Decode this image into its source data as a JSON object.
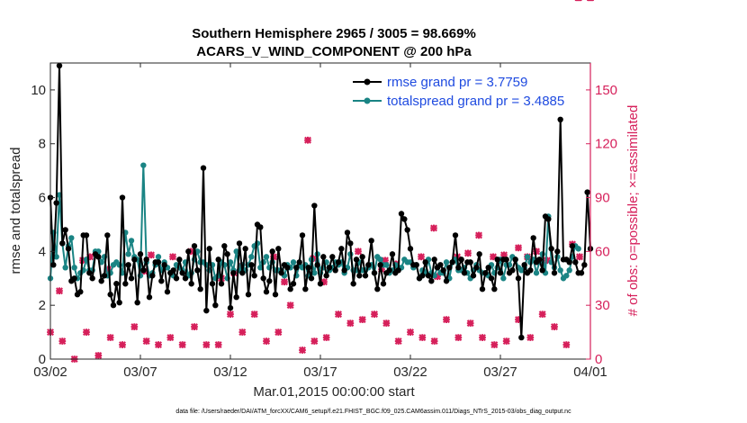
{
  "chart_data": {
    "type": "line",
    "title": "Southern Hemisphere 2965 / 3005 = 98.669%",
    "subtitle": "ACARS_V_WIND_COMPONENT @ 200 hPa",
    "xlabel": "Mar.01,2015 00:00:00 start",
    "ylabel": "rmse and totalspread",
    "ylabel_right": "# of obs: o=possible; ×=assimilated",
    "footer": "data file: /Users/raeder/DAI/ATM_forcXX/CAM6_setup/f.e21.FHIST_BGC.f09_025.CAM6assim.011/Diags_NTrS_2015-03/obs_diag_output.nc",
    "xlim": [
      0,
      30
    ],
    "ylim": [
      0,
      11
    ],
    "ylim_right": [
      0,
      165
    ],
    "x_tick_values": [
      1,
      6,
      11,
      16,
      21,
      26,
      31
    ],
    "x_tick_labels": [
      "03/02",
      "03/07",
      "03/12",
      "03/17",
      "03/22",
      "03/27",
      "04/01"
    ],
    "y_ticks": [
      0,
      2,
      4,
      6,
      8,
      10
    ],
    "y_ticks_right": [
      0,
      30,
      60,
      90,
      120,
      150
    ],
    "grid": false,
    "legend_position": "top-right",
    "colors": {
      "rmse": "#000000",
      "totalspread": "#1a8484",
      "obs": "#d6205b",
      "legend_text": "#1f4be0"
    },
    "series": [
      {
        "name": "rmse grand pr = 3.7759",
        "values": [
          6.0,
          3.5,
          5.8,
          10.9,
          4.3,
          4.8,
          4.1,
          2.9,
          3.0,
          2.4,
          2.5,
          4.6,
          4.6,
          3.2,
          3.0,
          3.9,
          3.8,
          2.9,
          3.1,
          4.6,
          2.4,
          2.0,
          2.8,
          2.1,
          6.0,
          2.8,
          3.5,
          3.0,
          3.7,
          2.1,
          3.9,
          3.3,
          3.7,
          2.3,
          3.1,
          3.6,
          3.6,
          2.9,
          3.5,
          2.5,
          3.2,
          3.3,
          3.0,
          3.7,
          3.2,
          3.0,
          4.0,
          2.8,
          4.2,
          3.3,
          2.6,
          7.1,
          1.8,
          4.1,
          2.8,
          2.0,
          3.7,
          2.8,
          4.2,
          3.9,
          1.9,
          3.2,
          2.3,
          4.3,
          3.2,
          4.1,
          2.4,
          3.5,
          3.1,
          5.0,
          4.9,
          3.0,
          2.5,
          2.9,
          4.0,
          2.4,
          4.1,
          3.2,
          3.5,
          3.4,
          2.6,
          2.8,
          3.4,
          3.6,
          4.6,
          2.6,
          3.4,
          3.0,
          5.7,
          3.5,
          2.8,
          3.8,
          3.1,
          3.4,
          3.8,
          3.3,
          3.6,
          4.1,
          3.3,
          4.7,
          4.3,
          2.8,
          3.7,
          3.1,
          3.8,
          3.1,
          3.5,
          4.4,
          3.2,
          2.6,
          3.5,
          2.8,
          3.2,
          3.3,
          3.9,
          3.2,
          3.3,
          5.4,
          5.2,
          4.8,
          4.1,
          3.5,
          3.5,
          3.0,
          3.1,
          3.6,
          3.1,
          2.9,
          3.7,
          3.4,
          3.5,
          3.3,
          2.9,
          3.4,
          3.6,
          4.6,
          3.4,
          3.7,
          3.2,
          3.6,
          3.6,
          3.1,
          3.4,
          3.9,
          2.6,
          3.2,
          3.4,
          3.0,
          2.6,
          3.7,
          3.2,
          3.7,
          3.7,
          3.2,
          3.3,
          3.7,
          3.0,
          0.8,
          3.5,
          3.2,
          3.3,
          4.5,
          3.6,
          3.7,
          3.3,
          5.3,
          5.2,
          4.1,
          3.2,
          4.0,
          8.9,
          3.7,
          3.7,
          3.6,
          4.2,
          3.6,
          3.2,
          3.2,
          3.5,
          6.2,
          4.1
        ]
      },
      {
        "name": "totalspread grand pr = 3.4885",
        "values": [
          3.0,
          4.7,
          3.8,
          6.1,
          4.3,
          3.4,
          4.2,
          4.5,
          3.4,
          3.0,
          3.2,
          3.3,
          3.7,
          3.3,
          3.3,
          4.0,
          4.0,
          3.6,
          3.8,
          3.1,
          3.2,
          3.5,
          3.6,
          3.5,
          3.2,
          4.7,
          3.9,
          4.4,
          3.8,
          3.7,
          3.1,
          7.2,
          3.6,
          3.1,
          3.2,
          3.5,
          3.8,
          3.3,
          3.6,
          3.4,
          3.2,
          3.1,
          3.5,
          3.4,
          3.3,
          3.6,
          3.1,
          3.2,
          3.7,
          4.0,
          3.6,
          3.6,
          3.5,
          3.3,
          3.5,
          3.0,
          3.1,
          3.6,
          3.5,
          3.0,
          3.6,
          3.3,
          4.0,
          3.3,
          3.5,
          3.3,
          3.5,
          3.8,
          4.2,
          4.3,
          3.4,
          3.6,
          3.8,
          3.4,
          3.6,
          3.3,
          3.3,
          3.3,
          3.1,
          3.5,
          3.4,
          3.6,
          3.1,
          3.5,
          3.4,
          3.5,
          3.1,
          3.7,
          3.2,
          3.9,
          3.2,
          3.4,
          3.6,
          3.3,
          3.4,
          3.6,
          3.5,
          3.6,
          3.2,
          3.4,
          3.9,
          3.3,
          3.3,
          3.6,
          3.3,
          3.3,
          3.4,
          3.5,
          3.2,
          3.8,
          3.7,
          3.5,
          3.5,
          3.2,
          3.3,
          3.5,
          3.4,
          3.4,
          3.7,
          3.6,
          3.6,
          3.4,
          3.5,
          3.0,
          3.3,
          3.2,
          3.7,
          3.2,
          3.1,
          3.4,
          3.2,
          3.2,
          3.6,
          3.0,
          3.6,
          3.7,
          3.3,
          3.3,
          3.4,
          3.2,
          3.0,
          3.3,
          3.5,
          3.3,
          3.2,
          3.2,
          3.1,
          3.5,
          3.2,
          3.4,
          3.7,
          3.0,
          3.5,
          3.5,
          3.8,
          3.7,
          3.4,
          3.3,
          3.4,
          3.8,
          3.6,
          3.7,
          3.2,
          3.6,
          3.9,
          3.2,
          5.3,
          3.6,
          3.4,
          3.8,
          3.3,
          3.0,
          3.1,
          3.3,
          3.8,
          4.2,
          4.1
        ]
      },
      {
        "name": "obs possible",
        "axis": "right",
        "marker": "o",
        "values": [
          15,
          5,
          20,
          25,
          10,
          0,
          20,
          25,
          0,
          6,
          8,
          22,
          15,
          12,
          23,
          8,
          2,
          22,
          0,
          30,
          12,
          10,
          22,
          25,
          8,
          5,
          20,
          8,
          18,
          12,
          5,
          26,
          10,
          8,
          15,
          25,
          8,
          0,
          18,
          10,
          12,
          25,
          18,
          5,
          8,
          25,
          12,
          10,
          18,
          22,
          25,
          14,
          8,
          12,
          20,
          25,
          8,
          22,
          10,
          15,
          25,
          12,
          8,
          20,
          15,
          30,
          0,
          8,
          25,
          12,
          18,
          12,
          10,
          28,
          8,
          5,
          15,
          20,
          8,
          18,
          30,
          25,
          18,
          20,
          5,
          12,
          22,
          20,
          10,
          15,
          22,
          5,
          12,
          20,
          8,
          10,
          25,
          18,
          8,
          5,
          20,
          15,
          12,
          20,
          22,
          8,
          10,
          15,
          25,
          18,
          10,
          5,
          20,
          12,
          8,
          18,
          10,
          12,
          22,
          20,
          15,
          8,
          10,
          25,
          12,
          18,
          15,
          20,
          10,
          8,
          12,
          20,
          22,
          8,
          18,
          10,
          12,
          25,
          5,
          8,
          20,
          15,
          8,
          10,
          12,
          18,
          25,
          22,
          8,
          15,
          12,
          20,
          10,
          8,
          12,
          18,
          22,
          20,
          10,
          15,
          12,
          8,
          18,
          20,
          25,
          15,
          10,
          12,
          18,
          5,
          20,
          15,
          8
        ]
      },
      {
        "name": "obs assimilated",
        "axis": "right",
        "marker": "x",
        "values": [
          15,
          5,
          40,
          25,
          10,
          0,
          22,
          25,
          0,
          6,
          8,
          22,
          15,
          12,
          23,
          8,
          2,
          22,
          0,
          49,
          12,
          10,
          22,
          25,
          8,
          5,
          20,
          8,
          18,
          12,
          5,
          26,
          10,
          8,
          15,
          25,
          8,
          0,
          18,
          10,
          12,
          25,
          18,
          5,
          8,
          25,
          12,
          10,
          18,
          22,
          25,
          14,
          8,
          12,
          20,
          25,
          8,
          22,
          10,
          15,
          25,
          12,
          8,
          20,
          15,
          57,
          0,
          8,
          25,
          12,
          18,
          12,
          10,
          28,
          8,
          5,
          15,
          20,
          8,
          18,
          30,
          25,
          18,
          20,
          5,
          12,
          22,
          20,
          10,
          15,
          22,
          5,
          12,
          20,
          8,
          10,
          25,
          18,
          8,
          5,
          20,
          15,
          12,
          20,
          22,
          8,
          10,
          15,
          25,
          18,
          10,
          5,
          20,
          12,
          8,
          18,
          10,
          12,
          22,
          20,
          15,
          8,
          10,
          25,
          12,
          18,
          15,
          20,
          10,
          8,
          12,
          20,
          22,
          8,
          18,
          10,
          12,
          25,
          5,
          8,
          20,
          15,
          8,
          10,
          12,
          18,
          25,
          22,
          8,
          15,
          12,
          20,
          10,
          8,
          12,
          18,
          22,
          20,
          10,
          15,
          12,
          8,
          18,
          20,
          25,
          15,
          10,
          12,
          18,
          5,
          20,
          15,
          8
        ]
      }
    ],
    "obs_extra_points": [
      {
        "x": 0.5,
        "y": 38
      },
      {
        "x": 1.8,
        "y": 55
      },
      {
        "x": 2.2,
        "y": 57
      },
      {
        "x": 3.2,
        "y": 50
      },
      {
        "x": 5.2,
        "y": 49
      },
      {
        "x": 5.6,
        "y": 58
      },
      {
        "x": 6.8,
        "y": 57
      },
      {
        "x": 7.8,
        "y": 60
      },
      {
        "x": 9.5,
        "y": 45
      },
      {
        "x": 10.2,
        "y": 48
      },
      {
        "x": 10.6,
        "y": 52
      },
      {
        "x": 12.4,
        "y": 57
      },
      {
        "x": 13.0,
        "y": 43
      },
      {
        "x": 14.3,
        "y": 122
      },
      {
        "x": 14.6,
        "y": 56
      },
      {
        "x": 15.2,
        "y": 43
      },
      {
        "x": 17.1,
        "y": 60
      },
      {
        "x": 18.4,
        "y": 50
      },
      {
        "x": 18.6,
        "y": 55
      },
      {
        "x": 19.2,
        "y": 53
      },
      {
        "x": 20.6,
        "y": 57
      },
      {
        "x": 21.3,
        "y": 73
      },
      {
        "x": 21.5,
        "y": 46
      },
      {
        "x": 22.6,
        "y": 57
      },
      {
        "x": 23.2,
        "y": 59
      },
      {
        "x": 23.8,
        "y": 69
      },
      {
        "x": 24.6,
        "y": 57
      },
      {
        "x": 25.2,
        "y": 58
      },
      {
        "x": 26.0,
        "y": 62
      },
      {
        "x": 26.5,
        "y": 57
      },
      {
        "x": 27.0,
        "y": 60
      },
      {
        "x": 27.6,
        "y": 55
      },
      {
        "x": 29.0,
        "y": 64
      },
      {
        "x": 29.4,
        "y": 57
      }
    ]
  }
}
